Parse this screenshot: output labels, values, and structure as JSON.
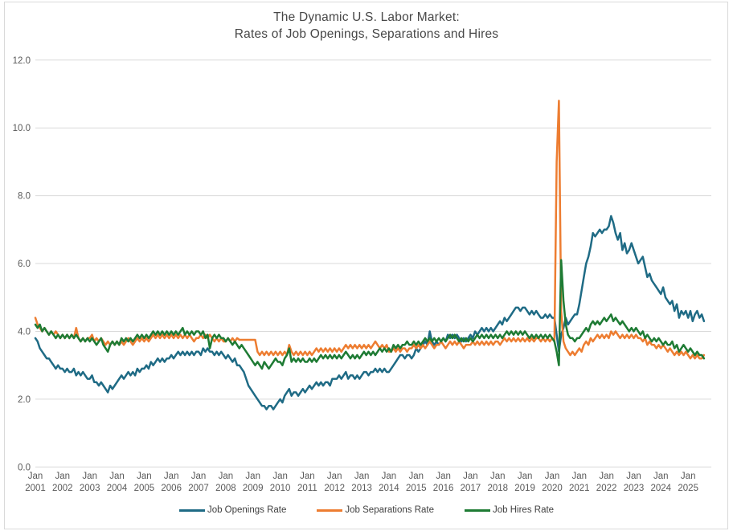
{
  "title": {
    "line1": "The Dynamic U.S. Labor Market:",
    "line2": "Rates of Job Openings, Separations and Hires"
  },
  "colors": {
    "openings": "#1f6b85",
    "separations": "#ed7d31",
    "hires": "#1e7b34",
    "gridline": "#d9d9d9",
    "axis_text": "#595959",
    "title_text": "#474747"
  },
  "chart_data": {
    "type": "line",
    "title": "The Dynamic U.S. Labor Market: Rates of Job Openings, Separations and Hires",
    "x_start": "Jan 2001",
    "x_end": "Aug 2025",
    "frequency": "monthly",
    "ylim": [
      0,
      12
    ],
    "grid": true,
    "legend_position": "bottom",
    "y_ticks": [
      "12.0",
      "10.0",
      "8.0",
      "6.0",
      "4.0",
      "2.0",
      "0.0"
    ],
    "x_tick_month": "Jan",
    "x_tick_years": [
      "2001",
      "2002",
      "2003",
      "2004",
      "2005",
      "2006",
      "2007",
      "2008",
      "2009",
      "2010",
      "2011",
      "2012",
      "2013",
      "2014",
      "2015",
      "2016",
      "2017",
      "2018",
      "2019",
      "2020",
      "2021",
      "2022",
      "2023",
      "2024",
      "2025"
    ],
    "series": [
      {
        "name": "Job Openings Rate",
        "color": "#1f6b85",
        "values": [
          3.8,
          3.7,
          3.5,
          3.4,
          3.3,
          3.2,
          3.2,
          3.1,
          3.0,
          2.9,
          3.0,
          2.9,
          2.9,
          2.8,
          2.9,
          2.8,
          2.8,
          2.9,
          2.7,
          2.8,
          2.7,
          2.8,
          2.7,
          2.6,
          2.6,
          2.7,
          2.5,
          2.5,
          2.4,
          2.5,
          2.4,
          2.3,
          2.2,
          2.4,
          2.3,
          2.4,
          2.5,
          2.6,
          2.7,
          2.6,
          2.7,
          2.8,
          2.7,
          2.8,
          2.7,
          2.9,
          2.8,
          2.9,
          2.9,
          3.0,
          2.9,
          3.1,
          3.0,
          3.1,
          3.2,
          3.1,
          3.2,
          3.1,
          3.2,
          3.2,
          3.3,
          3.2,
          3.3,
          3.4,
          3.3,
          3.4,
          3.3,
          3.4,
          3.3,
          3.4,
          3.3,
          3.4,
          3.4,
          3.3,
          3.5,
          3.4,
          3.5,
          3.4,
          3.4,
          3.3,
          3.4,
          3.3,
          3.4,
          3.3,
          3.2,
          3.3,
          3.2,
          3.1,
          3.2,
          3.0,
          3.0,
          2.9,
          2.8,
          2.6,
          2.4,
          2.3,
          2.2,
          2.1,
          2.0,
          1.9,
          1.8,
          1.8,
          1.7,
          1.8,
          1.8,
          1.7,
          1.8,
          1.9,
          2.0,
          1.9,
          2.1,
          2.2,
          2.3,
          2.1,
          2.2,
          2.2,
          2.1,
          2.2,
          2.3,
          2.2,
          2.3,
          2.4,
          2.3,
          2.4,
          2.5,
          2.4,
          2.5,
          2.4,
          2.5,
          2.5,
          2.4,
          2.6,
          2.6,
          2.6,
          2.7,
          2.6,
          2.7,
          2.8,
          2.6,
          2.7,
          2.7,
          2.6,
          2.7,
          2.6,
          2.7,
          2.8,
          2.8,
          2.7,
          2.8,
          2.8,
          2.9,
          2.8,
          2.9,
          2.8,
          2.9,
          2.8,
          2.8,
          2.9,
          3.0,
          3.1,
          3.2,
          3.3,
          3.3,
          3.2,
          3.3,
          3.3,
          3.2,
          3.3,
          3.5,
          3.4,
          3.5,
          3.6,
          3.7,
          3.6,
          4.0,
          3.7,
          3.6,
          3.7,
          3.6,
          3.7,
          3.8,
          3.7,
          3.9,
          3.8,
          3.9,
          3.8,
          3.9,
          3.8,
          3.7,
          3.8,
          3.7,
          3.8,
          3.9,
          3.8,
          4.0,
          3.9,
          4.0,
          4.1,
          4.0,
          4.1,
          4.0,
          4.1,
          4.0,
          4.1,
          4.2,
          4.3,
          4.2,
          4.4,
          4.3,
          4.4,
          4.5,
          4.6,
          4.7,
          4.7,
          4.6,
          4.7,
          4.7,
          4.6,
          4.5,
          4.6,
          4.5,
          4.6,
          4.5,
          4.4,
          4.4,
          4.5,
          4.4,
          4.5,
          4.4,
          4.4,
          3.9,
          3.4,
          3.9,
          4.1,
          4.4,
          4.2,
          4.3,
          4.4,
          4.5,
          4.5,
          4.8,
          5.2,
          5.6,
          6.0,
          6.2,
          6.5,
          6.9,
          6.8,
          6.9,
          7.0,
          6.9,
          7.0,
          7.0,
          7.1,
          7.4,
          7.2,
          6.9,
          6.7,
          6.9,
          6.4,
          6.6,
          6.3,
          6.4,
          6.6,
          6.4,
          6.2,
          6.0,
          6.1,
          6.2,
          5.9,
          5.6,
          5.7,
          5.5,
          5.4,
          5.3,
          5.2,
          5.1,
          5.3,
          5.0,
          4.9,
          4.8,
          4.9,
          4.6,
          4.8,
          4.4,
          4.6,
          4.5,
          4.6,
          4.4,
          4.6,
          4.3,
          4.5,
          4.6,
          4.4,
          4.5,
          4.3
        ]
      },
      {
        "name": "Job Separations Rate",
        "color": "#ed7d31",
        "values": [
          4.4,
          4.2,
          4.1,
          4.0,
          4.1,
          4.0,
          3.9,
          4.0,
          3.9,
          4.0,
          3.9,
          3.8,
          3.9,
          3.8,
          3.9,
          3.8,
          3.9,
          3.8,
          4.1,
          3.8,
          3.7,
          3.8,
          3.7,
          3.8,
          3.8,
          3.9,
          3.7,
          3.8,
          3.7,
          3.8,
          3.7,
          3.6,
          3.7,
          3.6,
          3.7,
          3.6,
          3.7,
          3.6,
          3.7,
          3.6,
          3.7,
          3.8,
          3.7,
          3.6,
          3.7,
          3.8,
          3.7,
          3.8,
          3.7,
          3.8,
          3.7,
          3.8,
          3.9,
          3.8,
          3.9,
          3.8,
          3.9,
          3.8,
          3.9,
          3.8,
          3.9,
          3.8,
          3.9,
          3.8,
          3.9,
          3.8,
          3.9,
          3.8,
          3.9,
          3.8,
          3.7,
          3.8,
          3.8,
          3.9,
          3.8,
          3.9,
          3.8,
          3.9,
          3.8,
          3.7,
          3.8,
          3.7,
          3.8,
          3.7,
          3.7,
          3.8,
          3.7,
          3.8,
          3.7,
          3.8,
          3.75,
          3.75,
          3.75,
          3.75,
          3.75,
          3.75,
          3.75,
          3.75,
          3.4,
          3.3,
          3.4,
          3.3,
          3.4,
          3.3,
          3.4,
          3.3,
          3.4,
          3.3,
          3.4,
          3.3,
          3.4,
          3.3,
          3.6,
          3.4,
          3.3,
          3.4,
          3.3,
          3.4,
          3.3,
          3.4,
          3.3,
          3.4,
          3.3,
          3.4,
          3.5,
          3.4,
          3.5,
          3.4,
          3.5,
          3.4,
          3.5,
          3.4,
          3.5,
          3.4,
          3.5,
          3.4,
          3.5,
          3.6,
          3.5,
          3.6,
          3.5,
          3.6,
          3.5,
          3.6,
          3.5,
          3.6,
          3.5,
          3.6,
          3.5,
          3.6,
          3.7,
          3.6,
          3.5,
          3.6,
          3.5,
          3.6,
          3.4,
          3.4,
          3.5,
          3.4,
          3.5,
          3.4,
          3.5,
          3.5,
          3.4,
          3.5,
          3.5,
          3.6,
          3.5,
          3.6,
          3.5,
          3.6,
          3.5,
          3.6,
          3.7,
          3.6,
          3.5,
          3.6,
          3.6,
          3.7,
          3.6,
          3.5,
          3.6,
          3.7,
          3.6,
          3.7,
          3.6,
          3.7,
          3.6,
          3.5,
          3.6,
          3.6,
          3.6,
          3.7,
          3.6,
          3.7,
          3.6,
          3.7,
          3.6,
          3.7,
          3.6,
          3.7,
          3.6,
          3.7,
          3.7,
          3.6,
          3.7,
          3.8,
          3.7,
          3.8,
          3.7,
          3.8,
          3.7,
          3.8,
          3.7,
          3.8,
          3.7,
          3.8,
          3.7,
          3.8,
          3.7,
          3.8,
          3.8,
          3.7,
          3.8,
          3.7,
          3.8,
          3.7,
          3.8,
          3.7,
          9.0,
          10.8,
          4.6,
          3.7,
          3.5,
          3.4,
          3.3,
          3.4,
          3.3,
          3.4,
          3.5,
          3.4,
          3.6,
          3.7,
          3.6,
          3.8,
          3.7,
          3.8,
          3.9,
          3.8,
          3.9,
          3.8,
          3.9,
          3.8,
          4.0,
          3.9,
          4.0,
          3.9,
          3.8,
          3.9,
          3.8,
          3.9,
          3.8,
          3.9,
          3.8,
          3.9,
          3.8,
          3.8,
          3.7,
          3.8,
          3.6,
          3.7,
          3.6,
          3.6,
          3.5,
          3.6,
          3.5,
          3.6,
          3.5,
          3.4,
          3.5,
          3.4,
          3.3,
          3.4,
          3.3,
          3.4,
          3.3,
          3.4,
          3.3,
          3.2,
          3.3,
          3.2,
          3.3,
          3.2,
          3.2,
          3.3
        ]
      },
      {
        "name": "Job Hires Rate",
        "color": "#1e7b34",
        "values": [
          4.2,
          4.1,
          4.2,
          4.0,
          4.1,
          4.0,
          3.9,
          4.0,
          3.9,
          3.8,
          3.9,
          3.8,
          3.9,
          3.8,
          3.9,
          3.8,
          3.9,
          3.8,
          3.9,
          3.8,
          3.7,
          3.8,
          3.7,
          3.8,
          3.7,
          3.8,
          3.7,
          3.6,
          3.7,
          3.8,
          3.6,
          3.5,
          3.4,
          3.6,
          3.7,
          3.6,
          3.7,
          3.6,
          3.8,
          3.7,
          3.8,
          3.7,
          3.8,
          3.7,
          3.8,
          3.9,
          3.8,
          3.9,
          3.8,
          3.9,
          3.8,
          3.9,
          4.0,
          3.9,
          4.0,
          3.9,
          4.0,
          3.9,
          4.0,
          3.9,
          4.0,
          3.9,
          4.0,
          3.9,
          4.0,
          4.1,
          3.9,
          4.0,
          3.9,
          4.0,
          3.9,
          4.0,
          4.0,
          3.9,
          4.0,
          3.8,
          3.9,
          3.5,
          3.8,
          3.9,
          3.8,
          3.9,
          3.8,
          3.8,
          3.7,
          3.8,
          3.7,
          3.6,
          3.7,
          3.6,
          3.5,
          3.6,
          3.5,
          3.4,
          3.3,
          3.2,
          3.1,
          3.0,
          3.1,
          3.0,
          2.9,
          3.1,
          3.0,
          2.9,
          3.0,
          3.1,
          3.2,
          3.1,
          3.1,
          3.0,
          3.2,
          3.3,
          3.5,
          3.1,
          3.2,
          3.1,
          3.2,
          3.1,
          3.2,
          3.1,
          3.1,
          3.2,
          3.1,
          3.2,
          3.1,
          3.2,
          3.3,
          3.2,
          3.3,
          3.2,
          3.3,
          3.2,
          3.3,
          3.2,
          3.3,
          3.2,
          3.3,
          3.4,
          3.3,
          3.2,
          3.3,
          3.2,
          3.3,
          3.2,
          3.3,
          3.4,
          3.3,
          3.4,
          3.3,
          3.4,
          3.3,
          3.4,
          3.5,
          3.4,
          3.5,
          3.4,
          3.5,
          3.4,
          3.6,
          3.5,
          3.6,
          3.5,
          3.6,
          3.6,
          3.7,
          3.6,
          3.6,
          3.7,
          3.6,
          3.7,
          3.6,
          3.7,
          3.8,
          3.7,
          3.8,
          3.7,
          3.8,
          3.7,
          3.8,
          3.7,
          3.8,
          3.7,
          3.8,
          3.9,
          3.8,
          3.9,
          3.8,
          3.7,
          3.8,
          3.7,
          3.8,
          3.7,
          3.8,
          3.7,
          3.8,
          3.9,
          3.8,
          3.9,
          3.8,
          3.9,
          3.8,
          3.9,
          3.8,
          3.9,
          3.8,
          3.9,
          3.8,
          3.9,
          4.0,
          3.9,
          4.0,
          3.9,
          4.0,
          3.9,
          4.0,
          3.9,
          4.0,
          3.9,
          3.8,
          3.9,
          3.8,
          3.9,
          3.8,
          3.9,
          3.8,
          3.9,
          3.8,
          3.9,
          3.8,
          3.7,
          3.4,
          3.0,
          6.1,
          4.9,
          4.2,
          3.9,
          3.8,
          3.8,
          3.7,
          3.8,
          3.8,
          3.9,
          4.0,
          4.1,
          4.0,
          4.2,
          4.3,
          4.2,
          4.3,
          4.2,
          4.3,
          4.4,
          4.3,
          4.4,
          4.5,
          4.3,
          4.4,
          4.3,
          4.2,
          4.3,
          4.2,
          4.1,
          4.0,
          4.1,
          4.0,
          4.1,
          4.0,
          3.9,
          4.0,
          3.8,
          3.9,
          3.8,
          3.7,
          3.8,
          3.7,
          3.8,
          3.7,
          3.6,
          3.7,
          3.6,
          3.6,
          3.7,
          3.5,
          3.6,
          3.4,
          3.5,
          3.6,
          3.5,
          3.4,
          3.5,
          3.4,
          3.3,
          3.4,
          3.3,
          3.3,
          3.2
        ]
      }
    ]
  }
}
